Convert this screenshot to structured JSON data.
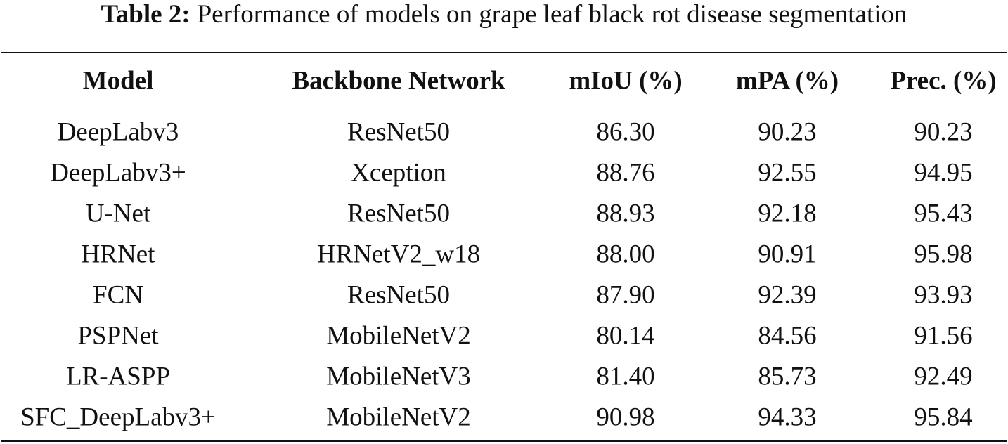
{
  "caption": {
    "label": "Table 2:",
    "title": "Performance of models on grape leaf black rot disease segmentation"
  },
  "table": {
    "header": [
      "Model",
      "Backbone Network",
      "mIoU (%)",
      "mPA (%)",
      "Prec. (%)"
    ],
    "rows": [
      [
        "DeepLabv3",
        "ResNet50",
        "86.30",
        "90.23",
        "90.23"
      ],
      [
        "DeepLabv3+",
        "Xception",
        "88.76",
        "92.55",
        "94.95"
      ],
      [
        "U-Net",
        "ResNet50",
        "88.93",
        "92.18",
        "95.43"
      ],
      [
        "HRNet",
        "HRNetV2_w18",
        "88.00",
        "90.91",
        "95.98"
      ],
      [
        "FCN",
        "ResNet50",
        "87.90",
        "92.39",
        "93.93"
      ],
      [
        "PSPNet",
        "MobileNetV2",
        "80.14",
        "84.56",
        "91.56"
      ],
      [
        "LR-ASPP",
        "MobileNetV3",
        "81.40",
        "85.73",
        "92.49"
      ],
      [
        "SFC_DeepLabv3+",
        "MobileNetV2",
        "90.98",
        "94.33",
        "95.84"
      ]
    ]
  }
}
